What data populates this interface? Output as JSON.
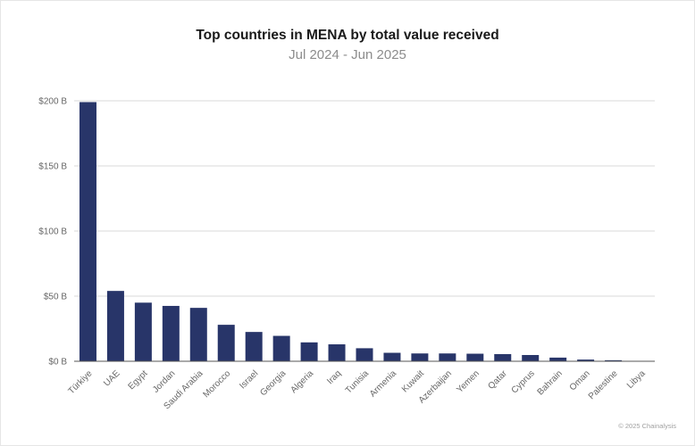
{
  "title": "Top countries in MENA by total value received",
  "subtitle": "Jul 2024 - Jun 2025",
  "footer": "© 2025 Chainalysis",
  "colors": {
    "bar": "#283569",
    "grid": "#d9d9d9",
    "axis": "#555555",
    "tick_text": "#666666"
  },
  "chart_data": {
    "type": "bar",
    "categories": [
      "Türkiye",
      "UAE",
      "Egypt",
      "Jordan",
      "Saudi Arabia",
      "Morocco",
      "Israel",
      "Georgia",
      "Algeria",
      "Iraq",
      "Tunisia",
      "Armenia",
      "Kuwait",
      "Azerbaijan",
      "Yemen",
      "Qatar",
      "Cyprus",
      "Bahrain",
      "Oman",
      "Palestine",
      "Libya"
    ],
    "values": [
      199,
      54,
      45,
      42.5,
      41,
      28,
      22.5,
      19.5,
      14.5,
      13,
      10,
      6.5,
      6,
      6,
      5.8,
      5.5,
      4.8,
      2.8,
      1.3,
      0.8,
      0.1
    ],
    "ylim": [
      0,
      200
    ],
    "yticks": [
      0,
      50,
      100,
      150,
      200
    ],
    "ytick_labels": [
      "$0 B",
      "$50 B",
      "$100 B",
      "$150 B",
      "$200 B"
    ],
    "grid": true
  }
}
